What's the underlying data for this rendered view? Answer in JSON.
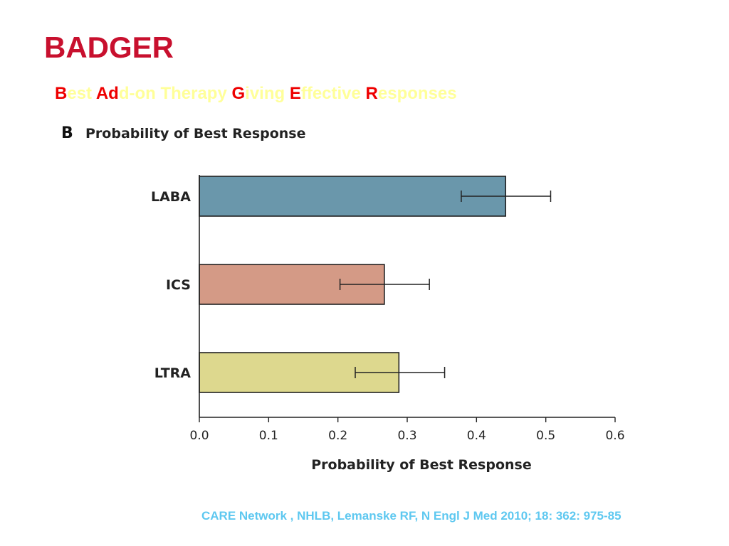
{
  "slide": {
    "title": "BADGER",
    "acronym_parts": [
      {
        "cap": "B",
        "rest": "est "
      },
      {
        "cap": "Ad",
        "rest": "d-on Therapy "
      },
      {
        "cap": "G",
        "rest": "iving "
      },
      {
        "cap": "E",
        "rest": "ffective "
      },
      {
        "cap": "R",
        "rest": "esponses"
      }
    ],
    "citation": "CARE Network , NHLB, Lemanske RF, N Engl J Med 2010; 18: 362: 975-85",
    "colors": {
      "title": "#c8102e",
      "acronym_caps": "#ee0000",
      "acronym_rest": "#ffff99",
      "citation": "#5ec8f0"
    }
  },
  "chart_data": {
    "type": "bar",
    "orientation": "horizontal",
    "panel_label": "B",
    "title": "Probability of Best Response",
    "xlabel": "Probability of Best Response",
    "ylabel": "",
    "xlim": [
      0,
      0.6
    ],
    "xticks": [
      "0.0",
      "0.1",
      "0.2",
      "0.3",
      "0.4",
      "0.5",
      "0.6"
    ],
    "grid": false,
    "categories": [
      "LABA",
      "ICS",
      "LTRA"
    ],
    "values": [
      0.442,
      0.267,
      0.288
    ],
    "error_low": [
      0.378,
      0.203,
      0.225
    ],
    "error_high": [
      0.507,
      0.332,
      0.354
    ],
    "colors": [
      "#6a97ab",
      "#d49a86",
      "#ddd88e"
    ]
  }
}
